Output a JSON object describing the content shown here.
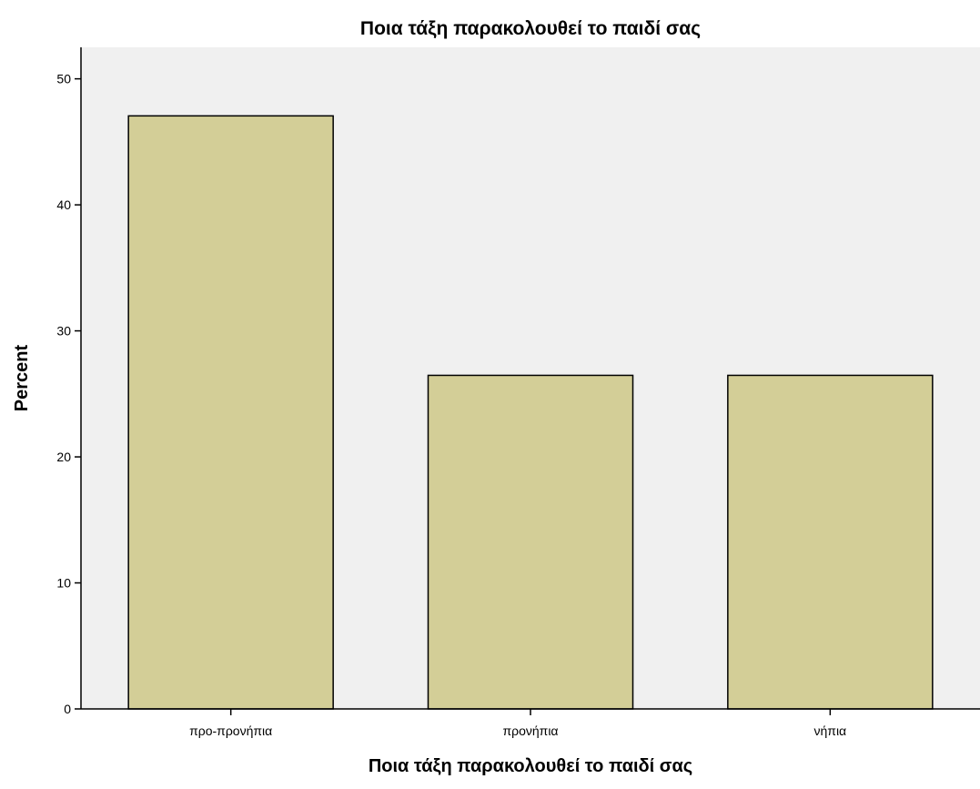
{
  "chart_data": {
    "type": "bar",
    "title": "Ποια τάξη παρακολουθεί το παιδί σας",
    "xlabel": "Ποια τάξη παρακολουθεί το παιδί σας",
    "ylabel": "Percent",
    "categories": [
      "προ-προνήπια",
      "προνήπια",
      "νήπια"
    ],
    "values": [
      47.06,
      26.47,
      26.47
    ],
    "ylim": [
      0,
      52.5
    ],
    "yticks": [
      0,
      10,
      20,
      30,
      40,
      50
    ],
    "grid": false,
    "legend": "none",
    "colors": {
      "bar_fill": "#d3ce97",
      "bar_stroke": "#000000",
      "plot_background": "#f0f0f0",
      "page_background": "#ffffff"
    }
  }
}
